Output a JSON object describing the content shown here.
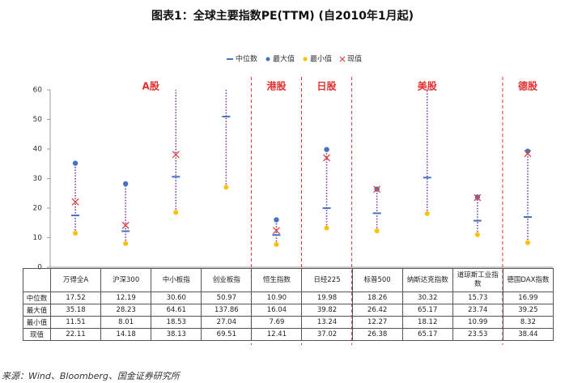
{
  "chart_data": {
    "type": "range",
    "title": "图表1：全球主要指数PE(TTM) (自2010年1月起)",
    "categories": [
      "万得全A",
      "沪深300",
      "中小板指",
      "创业板指",
      "恒生指数",
      "日经225",
      "标普500",
      "纳斯达克指数",
      "道琼斯工业指数",
      "德国DAX指数"
    ],
    "groups": [
      "A股",
      "港股",
      "日股",
      "美股",
      "德股"
    ],
    "series": [
      {
        "name": "中位数",
        "color": "#4472c4",
        "values": [
          17.52,
          12.19,
          30.6,
          50.97,
          10.9,
          19.98,
          18.26,
          30.32,
          15.73,
          16.99
        ],
        "value_labels": [
          "17.52",
          "12.19",
          "30.60",
          "50.97",
          "10.90",
          "19.98",
          "18.26",
          "30.32",
          "15.73",
          "16.99"
        ]
      },
      {
        "name": "最大值",
        "color": "#4472c4",
        "values": [
          35.18,
          28.23,
          64.61,
          137.86,
          16.04,
          39.82,
          26.42,
          65.17,
          23.74,
          39.25
        ],
        "value_labels": [
          "35.18",
          "28.23",
          "64.61",
          "137.86",
          "16.04",
          "39.82",
          "26.42",
          "65.17",
          "23.74",
          "39.25"
        ]
      },
      {
        "name": "最小值",
        "color": "#ffc000",
        "values": [
          11.51,
          8.01,
          18.53,
          27.04,
          7.69,
          13.24,
          12.27,
          18.12,
          10.99,
          8.32
        ],
        "value_labels": [
          "11.51",
          "8.01",
          "18.53",
          "27.04",
          "7.69",
          "13.24",
          "12.27",
          "18.12",
          "10.99",
          "8.32"
        ]
      },
      {
        "name": "现值",
        "color": "#e04040",
        "values": [
          22.11,
          14.18,
          38.13,
          69.51,
          12.41,
          37.02,
          26.38,
          65.17,
          23.53,
          38.44
        ],
        "value_labels": [
          "22.11",
          "14.18",
          "38.13",
          "69.51",
          "12.41",
          "37.02",
          "26.38",
          "65.17",
          "23.53",
          "38.44"
        ]
      }
    ],
    "range_color": "#7030a0",
    "separator_color": "#e03030",
    "ylim": [
      0,
      60
    ],
    "yticks": [
      0,
      10,
      20,
      30,
      40,
      50,
      60
    ]
  },
  "source": "来源：Wind、Bloomberg、国金证券研究所"
}
